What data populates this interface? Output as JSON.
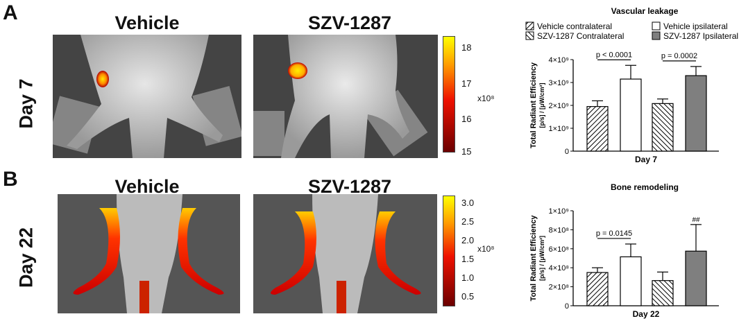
{
  "panels": {
    "a": {
      "letter": "A",
      "row_label": "Day 7",
      "col_left": "Vehicle",
      "col_right": "SZV-1287",
      "colorbar": {
        "ticks": [
          "18",
          "17",
          "16",
          "15"
        ],
        "exponent": "x10⁸"
      }
    },
    "b": {
      "letter": "B",
      "row_label": "Day 22",
      "col_left": "Vehicle",
      "col_right": "SZV-1287",
      "colorbar": {
        "ticks": [
          "3.0",
          "2.5",
          "2.0",
          "1.5",
          "1.0",
          "0.5"
        ],
        "exponent": "x10⁸"
      }
    }
  },
  "legend": {
    "items": [
      {
        "label": "Vehicle contralateral",
        "style": "hatch-right"
      },
      {
        "label": "Vehicle ipsilateral",
        "style": "white"
      },
      {
        "label": "SZV-1287 Contralateral",
        "style": "hatch-left"
      },
      {
        "label": "SZV-1287 Ipsilateral",
        "style": "gray"
      }
    ]
  },
  "colors": {
    "gray_bar": "#7f7f7f",
    "colorbar_top": "#ffff00",
    "colorbar_bottom": "#6b0000"
  },
  "chart_data": [
    {
      "type": "bar",
      "title": "Vascular leakage",
      "xlabel": "Day 7",
      "ylabel": "Total Radiant Efficiency",
      "ylabel_units": "[p/s] / [μW/cm²]",
      "ylim": [
        0,
        4000000000
      ],
      "yticks": [
        0,
        1000000000,
        2000000000,
        3000000000,
        4000000000
      ],
      "yticklabels": [
        "0",
        "1×10⁹",
        "2×10⁹",
        "3×10⁹",
        "4×10⁹"
      ],
      "series": [
        {
          "name": "Vehicle contralateral",
          "value": 1950000000,
          "error": 250000000
        },
        {
          "name": "Vehicle ipsilateral",
          "value": 3150000000,
          "error": 600000000
        },
        {
          "name": "SZV-1287 Contralateral",
          "value": 2080000000,
          "error": 200000000
        },
        {
          "name": "SZV-1287 Ipsilateral",
          "value": 3300000000,
          "error": 400000000
        }
      ],
      "annotations": [
        {
          "text": "p < 0.0001",
          "from": 0,
          "to": 1
        },
        {
          "text": "p = 0.0002",
          "from": 2,
          "to": 3
        }
      ]
    },
    {
      "type": "bar",
      "title": "Bone remodeling",
      "xlabel": "Day 22",
      "ylabel": "Total Radiant Efficiency",
      "ylabel_units": "[p/s] / [μW/cm²]",
      "ylim": [
        0,
        1000000000
      ],
      "yticks": [
        0,
        200000000,
        400000000,
        600000000,
        800000000,
        1000000000
      ],
      "yticklabels": [
        "0",
        "2×10⁸",
        "4×10⁸",
        "6×10⁸",
        "8×10⁸",
        "1×10⁹"
      ],
      "series": [
        {
          "name": "Vehicle contralateral",
          "value": 350000000,
          "error": 50000000
        },
        {
          "name": "Vehicle ipsilateral",
          "value": 515000000,
          "error": 135000000
        },
        {
          "name": "SZV-1287 Contralateral",
          "value": 265000000,
          "error": 90000000
        },
        {
          "name": "SZV-1287 Ipsilateral",
          "value": 575000000,
          "error": 280000000
        }
      ],
      "annotations": [
        {
          "text": "p = 0.0145",
          "from": 0,
          "to": 1
        },
        {
          "text": "##",
          "on": 3
        }
      ]
    }
  ]
}
